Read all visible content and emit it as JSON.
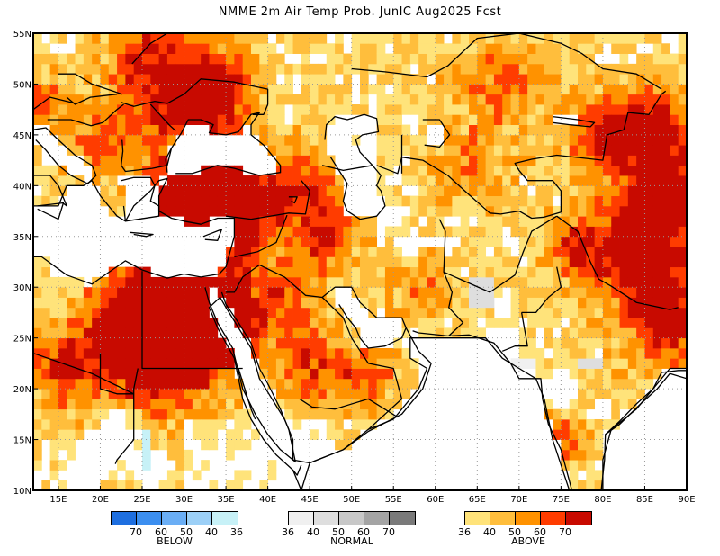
{
  "title": "NMME 2m Air Temp Prob. JunIC  Aug2025 Fcst",
  "map": {
    "lon_range": [
      12,
      90
    ],
    "lat_range": [
      10,
      55
    ],
    "lon_ticks": [
      "15E",
      "20E",
      "25E",
      "30E",
      "35E",
      "40E",
      "45E",
      "50E",
      "55E",
      "60E",
      "65E",
      "70E",
      "75E",
      "80E",
      "85E",
      "90E"
    ],
    "lat_ticks": [
      "55N",
      "50N",
      "45N",
      "40N",
      "35N",
      "30N",
      "25N",
      "20N",
      "15N",
      "10N"
    ]
  },
  "legend": {
    "below": {
      "label": "BELOW",
      "ticks": [
        "70",
        "60",
        "50",
        "40",
        "36"
      ],
      "colors": [
        "#1e6fe0",
        "#3c8ff0",
        "#6aaef5",
        "#9cd0f7",
        "#c7f1f7"
      ]
    },
    "normal": {
      "label": "NORMAL",
      "ticks": [
        "36",
        "40",
        "50",
        "60",
        "70"
      ],
      "colors": [
        "#f0f0f0",
        "#dedede",
        "#c8c8c8",
        "#a4a4a4",
        "#7a7a7a"
      ]
    },
    "above": {
      "label": "ABOVE",
      "ticks": [
        "36",
        "40",
        "50",
        "60",
        "70"
      ],
      "colors": [
        "#ffe37a",
        "#ffbe3c",
        "#ff9200",
        "#ff3c00",
        "#c80a00"
      ]
    }
  }
}
